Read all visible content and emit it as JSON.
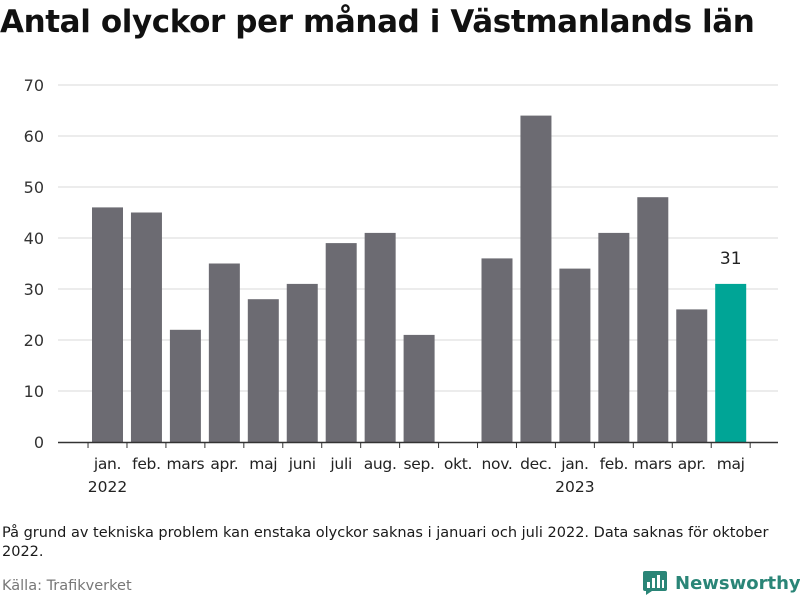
{
  "title": "Antal olyckor per månad i Västmanlands län",
  "note": "På grund av tekniska problem kan enstaka olyckor saknas i januari och juli 2022. Data saknas för oktober 2022.",
  "source": "Källa: Trafikverket",
  "brand": {
    "name": "Newsworthy",
    "icon": "bar-chart-logo-icon"
  },
  "colors": {
    "bar": "#6c6b72",
    "highlight": "#00a596",
    "grid": "#d9d9d9",
    "axis": "#333333",
    "brand": "#2a8577"
  },
  "chart_data": {
    "type": "bar",
    "title": "Antal olyckor per månad i Västmanlands län",
    "xlabel": "",
    "ylabel": "",
    "ylim": [
      0,
      70
    ],
    "yticks": [
      0,
      10,
      20,
      30,
      40,
      50,
      60,
      70
    ],
    "grid": true,
    "categories": [
      "jan.",
      "feb.",
      "mars",
      "apr.",
      "maj",
      "juni",
      "juli",
      "aug.",
      "sep.",
      "okt.",
      "nov.",
      "dec.",
      "jan.",
      "feb.",
      "mars",
      "apr.",
      "maj"
    ],
    "year_labels": [
      {
        "index": 0,
        "label": "2022"
      },
      {
        "index": 12,
        "label": "2023"
      }
    ],
    "values": [
      46,
      45,
      22,
      35,
      28,
      31,
      39,
      41,
      21,
      null,
      36,
      64,
      34,
      41,
      48,
      26,
      31
    ],
    "highlight": {
      "index": 16,
      "label": "31"
    }
  }
}
